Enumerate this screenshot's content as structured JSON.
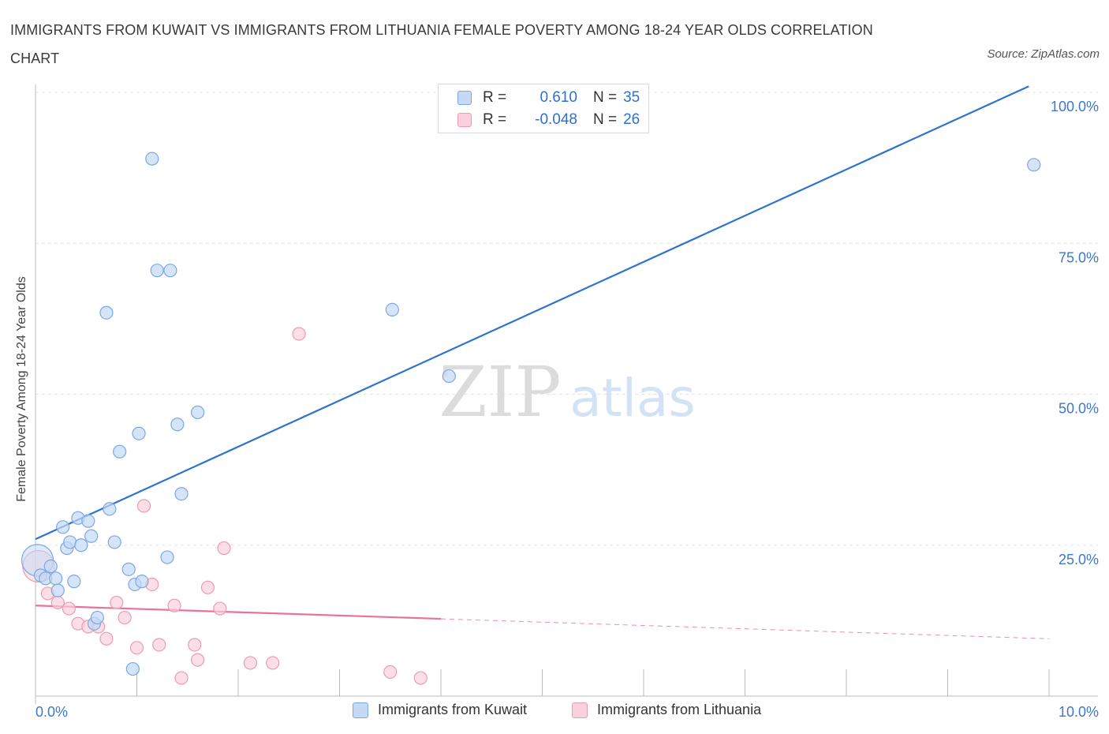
{
  "title": "IMMIGRANTS FROM KUWAIT VS IMMIGRANTS FROM LITHUANIA FEMALE POVERTY AMONG 18-24 YEAR OLDS CORRELATION CHART",
  "source": "Source: ZipAtlas.com",
  "watermark": {
    "zip": "ZIP",
    "atlas": "atlas"
  },
  "legend": {
    "kuwait": {
      "r_label": "R =",
      "r_value": "0.610",
      "n_label": "N =",
      "n_value": "35"
    },
    "lithuania": {
      "r_label": "R =",
      "r_value": "-0.048",
      "n_label": "N =",
      "n_value": "26"
    }
  },
  "bottom_legend": {
    "kuwait": "Immigrants from Kuwait",
    "lithuania": "Immigrants from Lithuania"
  },
  "colors": {
    "kuwait_fill": "#c5d9f5",
    "kuwait_stroke": "#7aa8e6",
    "kuwait_line": "#2f73cc",
    "lithuania_fill": "#f9d0dc",
    "lithuania_stroke": "#eb9cb4",
    "lithuania_line": "#e8739a",
    "axis_label": "#3d78cc"
  },
  "chart_data": {
    "type": "scatter",
    "title": "IMMIGRANTS FROM KUWAIT VS IMMIGRANTS FROM LITHUANIA FEMALE POVERTY AMONG 18-24 YEAR OLDS CORRELATION CHART",
    "xlabel": "",
    "ylabel": "Female Poverty Among 18-24 Year Olds",
    "xlim": [
      0,
      10
    ],
    "ylim": [
      0,
      100
    ],
    "x_ticks": [
      {
        "value": 0,
        "label": "0.0%"
      },
      {
        "value": 10,
        "label": "10.0%"
      }
    ],
    "y_ticks": [
      {
        "value": 25,
        "label": "25.0%"
      },
      {
        "value": 50,
        "label": "50.0%"
      },
      {
        "value": 75,
        "label": "75.0%"
      },
      {
        "value": 100,
        "label": "100.0%"
      }
    ],
    "grid": true,
    "series": [
      {
        "name": "Immigrants from Kuwait",
        "r": 0.61,
        "n": 35,
        "trend": {
          "x": [
            0,
            9.8
          ],
          "y": [
            26.0,
            101.0
          ]
        },
        "points": [
          {
            "x": 0.02,
            "y": 22.5,
            "big": true
          },
          {
            "x": 0.05,
            "y": 20.0
          },
          {
            "x": 0.1,
            "y": 19.5
          },
          {
            "x": 0.15,
            "y": 21.5
          },
          {
            "x": 0.2,
            "y": 19.5
          },
          {
            "x": 0.22,
            "y": 17.5
          },
          {
            "x": 0.27,
            "y": 28.0
          },
          {
            "x": 0.31,
            "y": 24.5
          },
          {
            "x": 0.34,
            "y": 25.5
          },
          {
            "x": 0.38,
            "y": 19.0
          },
          {
            "x": 0.42,
            "y": 29.5
          },
          {
            "x": 0.45,
            "y": 25.0
          },
          {
            "x": 0.52,
            "y": 29.0
          },
          {
            "x": 0.55,
            "y": 26.5
          },
          {
            "x": 0.58,
            "y": 12.0
          },
          {
            "x": 0.61,
            "y": 13.0
          },
          {
            "x": 0.7,
            "y": 63.5
          },
          {
            "x": 0.73,
            "y": 31.0
          },
          {
            "x": 0.78,
            "y": 25.5
          },
          {
            "x": 0.83,
            "y": 40.5
          },
          {
            "x": 0.92,
            "y": 21.0
          },
          {
            "x": 0.96,
            "y": 4.5
          },
          {
            "x": 0.98,
            "y": 18.5
          },
          {
            "x": 1.02,
            "y": 43.5
          },
          {
            "x": 1.05,
            "y": 19.0
          },
          {
            "x": 1.15,
            "y": 89.0
          },
          {
            "x": 1.2,
            "y": 70.5
          },
          {
            "x": 1.3,
            "y": 23.0
          },
          {
            "x": 1.33,
            "y": 70.5
          },
          {
            "x": 1.4,
            "y": 45.0
          },
          {
            "x": 1.44,
            "y": 33.5
          },
          {
            "x": 1.6,
            "y": 47.0
          },
          {
            "x": 3.52,
            "y": 64.0
          },
          {
            "x": 4.08,
            "y": 53.0
          },
          {
            "x": 9.85,
            "y": 88.0
          }
        ]
      },
      {
        "name": "Immigrants from Lithuania",
        "r": -0.048,
        "n": 26,
        "trend": {
          "x": [
            0,
            4.0
          ],
          "y": [
            15.0,
            12.8
          ]
        },
        "trend_dashed": {
          "x": [
            4.0,
            10.0
          ],
          "y": [
            12.8,
            9.5
          ]
        },
        "points": [
          {
            "x": 0.03,
            "y": 21.5,
            "big": true
          },
          {
            "x": 0.12,
            "y": 17.0
          },
          {
            "x": 0.22,
            "y": 15.5
          },
          {
            "x": 0.33,
            "y": 14.5
          },
          {
            "x": 0.42,
            "y": 12.0
          },
          {
            "x": 0.52,
            "y": 11.5
          },
          {
            "x": 0.62,
            "y": 11.5
          },
          {
            "x": 0.7,
            "y": 9.5
          },
          {
            "x": 0.8,
            "y": 15.5
          },
          {
            "x": 0.88,
            "y": 13.0
          },
          {
            "x": 1.0,
            "y": 8.0
          },
          {
            "x": 1.07,
            "y": 31.5
          },
          {
            "x": 1.15,
            "y": 18.5
          },
          {
            "x": 1.22,
            "y": 8.5
          },
          {
            "x": 1.37,
            "y": 15.0
          },
          {
            "x": 1.44,
            "y": 3.0
          },
          {
            "x": 1.57,
            "y": 8.5
          },
          {
            "x": 1.6,
            "y": 6.0
          },
          {
            "x": 1.7,
            "y": 18.0
          },
          {
            "x": 1.82,
            "y": 14.5
          },
          {
            "x": 1.86,
            "y": 24.5
          },
          {
            "x": 2.12,
            "y": 5.5
          },
          {
            "x": 2.34,
            "y": 5.5
          },
          {
            "x": 2.6,
            "y": 60.0
          },
          {
            "x": 3.5,
            "y": 4.0
          },
          {
            "x": 3.8,
            "y": 3.0
          }
        ]
      }
    ]
  }
}
